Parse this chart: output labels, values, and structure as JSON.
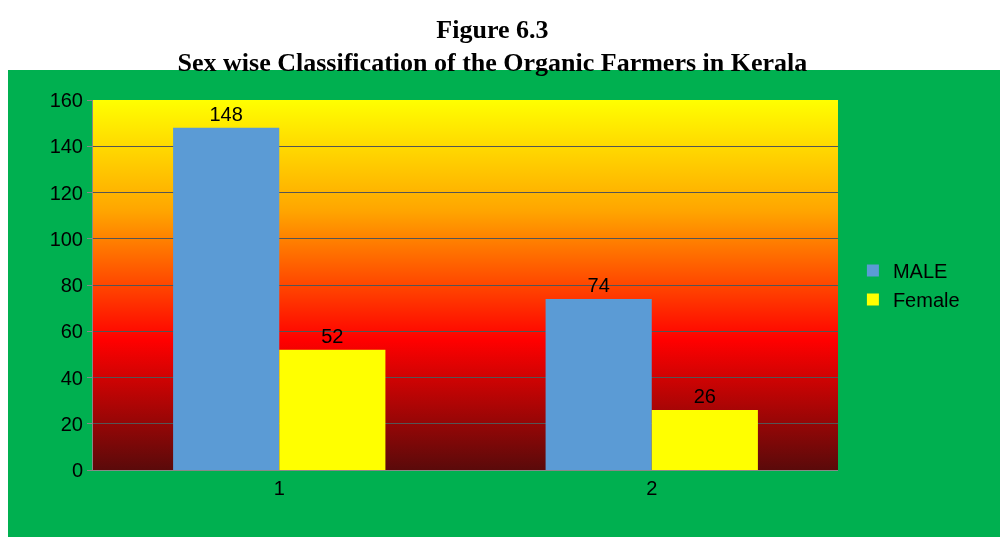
{
  "chart_data": {
    "type": "bar",
    "title": "Figure 6.3",
    "subtitle": "Sex wise Classification of the Organic Farmers in Kerala",
    "categories": [
      "1",
      "2"
    ],
    "series": [
      {
        "name": "MALE",
        "color": "#5b9bd5",
        "values": [
          148,
          74
        ]
      },
      {
        "name": "Female",
        "color": "#ffff00",
        "values": [
          52,
          26
        ]
      }
    ],
    "ylim": [
      0,
      160
    ],
    "yticks": [
      0,
      20,
      40,
      60,
      80,
      100,
      120,
      140,
      160
    ],
    "grid": "y",
    "legend": "right",
    "data_labels": true
  }
}
